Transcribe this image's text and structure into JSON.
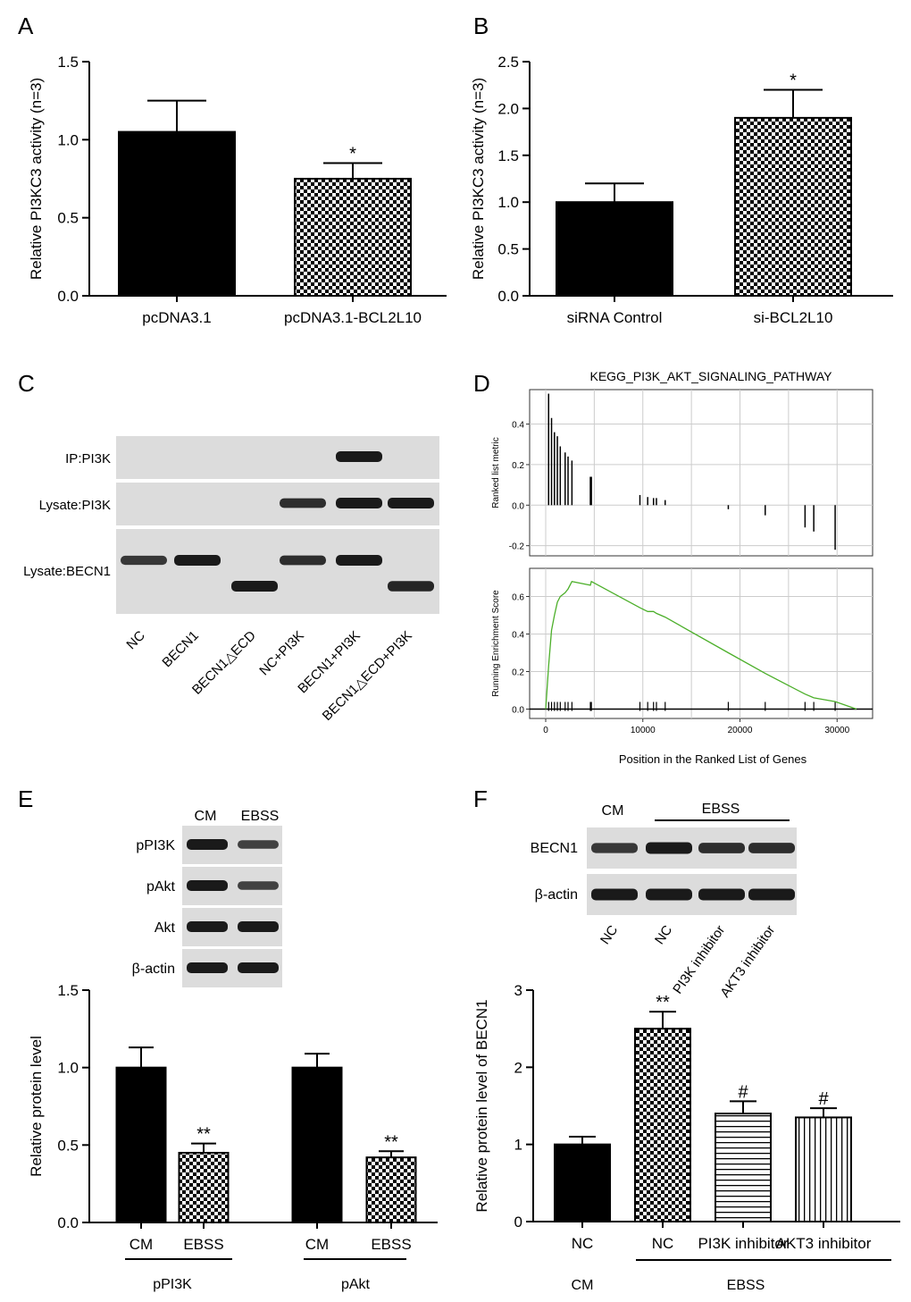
{
  "colors": {
    "ink": "#000000",
    "blot_bg": "#dcdcdc",
    "band": "#1a1a1a",
    "gsea_line": "#4caf2a",
    "grid": "#cccccc"
  },
  "panels": {
    "A": {
      "label": "A"
    },
    "B": {
      "label": "B"
    },
    "C": {
      "label": "C",
      "rows": [
        "IP:PI3K",
        "Lysate:PI3K",
        "Lysate:BECN1"
      ],
      "lanes": [
        "NC",
        "BECN1",
        "BECN1△ECD",
        "NC+PI3K",
        "BECN1+PI3K",
        "BECN1△ECD+PI3K"
      ],
      "bands": [
        [
          0,
          0,
          0,
          0,
          1,
          0
        ],
        [
          0,
          0,
          0,
          0.8,
          1,
          1
        ],
        [
          0.7,
          1,
          1,
          0.8,
          1,
          0.9
        ]
      ]
    },
    "D": {
      "label": "D"
    },
    "E": {
      "label": "E",
      "blot_cols": [
        "CM",
        "EBSS"
      ],
      "blot_rows": [
        "pPI3K",
        "pAkt",
        "Akt",
        "β-actin"
      ],
      "bands": [
        [
          1,
          0.6
        ],
        [
          1,
          0.6
        ],
        [
          1,
          1
        ],
        [
          1,
          1
        ]
      ],
      "group_labels": [
        "pPI3K",
        "pAkt"
      ]
    },
    "F": {
      "label": "F",
      "blot_rows": [
        "BECN1",
        "β-actin"
      ],
      "blot_top": {
        "cm": "CM",
        "ebss": "EBSS"
      },
      "blot_lanes": [
        "NC",
        "NC",
        "PI3K inhibitor",
        "AKT3 inhibitor"
      ],
      "bands": [
        [
          0.7,
          1,
          0.8,
          0.8
        ],
        [
          1,
          1,
          1,
          1
        ]
      ],
      "group_cm": "CM",
      "group_ebss": "EBSS"
    }
  },
  "chart_data": [
    {
      "id": "A",
      "type": "bar",
      "categories": [
        "pcDNA3.1",
        "pcDNA3.1-BCL2L10"
      ],
      "values": [
        1.05,
        0.75
      ],
      "errors": [
        0.2,
        0.1
      ],
      "patterns": [
        "solid",
        "checker"
      ],
      "annotations": [
        "",
        "*"
      ],
      "ylabel": "Relative PI3KC3 activity (n=3)",
      "ylim": [
        0,
        1.5
      ],
      "yticks": [
        "0.0",
        "0.5",
        "1.0",
        "1.5"
      ]
    },
    {
      "id": "B",
      "type": "bar",
      "categories": [
        "siRNA Control",
        "si-BCL2L10"
      ],
      "values": [
        1.0,
        1.9
      ],
      "errors": [
        0.2,
        0.3
      ],
      "patterns": [
        "solid",
        "checker"
      ],
      "annotations": [
        "",
        "*"
      ],
      "ylabel": "Relative PI3KC3 activity (n=3)",
      "ylim": [
        0,
        2.5
      ],
      "yticks": [
        "0.0",
        "0.5",
        "1.0",
        "1.5",
        "2.0",
        "2.5"
      ]
    },
    {
      "id": "D",
      "type": "line",
      "title": "KEGG_PI3K_AKT_SIGNALING_PATHWAY",
      "xlabel": "Position in the Ranked List of Genes",
      "xlim": [
        0,
        32000
      ],
      "xticks": [
        "0",
        "10000",
        "20000",
        "30000"
      ],
      "ranked_metric": {
        "ylabel": "Ranked list metric",
        "ylim": [
          -0.25,
          0.57
        ],
        "yticks": [
          "-0.2",
          "0.0",
          "0.2",
          "0.4"
        ],
        "x": [
          300,
          600,
          900,
          1200,
          1500,
          2000,
          2300,
          2700,
          4600,
          4700,
          9700,
          10500,
          11100,
          11400,
          12300,
          18800,
          22600,
          26700,
          27600,
          29800
        ],
        "y": [
          0.55,
          0.43,
          0.36,
          0.34,
          0.29,
          0.26,
          0.24,
          0.22,
          0.14,
          0.14,
          0.05,
          0.04,
          0.035,
          0.035,
          0.025,
          -0.02,
          -0.05,
          -0.11,
          -0.13,
          -0.22
        ]
      },
      "enrichment": {
        "ylabel": "Running Enrichment Score",
        "ylim": [
          -0.05,
          0.75
        ],
        "yticks": [
          "0.0",
          "0.2",
          "0.4",
          "0.6"
        ],
        "x": [
          0,
          300,
          600,
          900,
          1200,
          1500,
          2000,
          2300,
          2700,
          4600,
          4700,
          9700,
          10500,
          11100,
          11400,
          12300,
          18800,
          22600,
          26700,
          27600,
          29800,
          32000
        ],
        "y": [
          0.0,
          0.23,
          0.42,
          0.5,
          0.57,
          0.6,
          0.62,
          0.64,
          0.68,
          0.66,
          0.68,
          0.54,
          0.52,
          0.52,
          0.51,
          0.49,
          0.3,
          0.19,
          0.08,
          0.06,
          0.04,
          0.0
        ]
      }
    },
    {
      "id": "E",
      "type": "bar",
      "groups": [
        "pPI3K",
        "pAkt"
      ],
      "categories": [
        "CM",
        "EBSS",
        "CM",
        "EBSS"
      ],
      "values": [
        1.0,
        0.45,
        1.0,
        0.42
      ],
      "errors": [
        0.13,
        0.06,
        0.09,
        0.04
      ],
      "patterns": [
        "solid",
        "checker",
        "solid",
        "checker"
      ],
      "annotations": [
        "",
        "**",
        "",
        "**"
      ],
      "ylabel": "Relative protein level",
      "ylim": [
        0,
        1.5
      ],
      "yticks": [
        "0.0",
        "0.5",
        "1.0",
        "1.5"
      ]
    },
    {
      "id": "F",
      "type": "bar",
      "categories": [
        "NC",
        "NC",
        "PI3K inhibitor",
        "AKT3 inhibitor"
      ],
      "values": [
        1.0,
        2.5,
        1.4,
        1.35
      ],
      "errors": [
        0.1,
        0.22,
        0.16,
        0.12
      ],
      "patterns": [
        "solid",
        "checker",
        "hstripe",
        "vstripe"
      ],
      "annotations": [
        "",
        "**",
        "#",
        "#"
      ],
      "ylabel": "Relative protein level of BECN1",
      "ylim": [
        0,
        3
      ],
      "yticks": [
        "0",
        "1",
        "2",
        "3"
      ]
    }
  ]
}
